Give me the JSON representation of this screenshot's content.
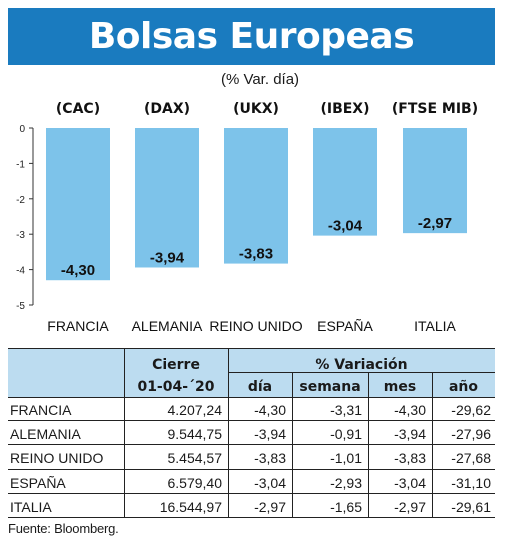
{
  "title": "Bolsas Europeas",
  "subtitle": "(% Var. día)",
  "chart_data": {
    "type": "bar",
    "categories": [
      "FRANCIA",
      "ALEMANIA",
      "REINO UNIDO",
      "ESPAÑA",
      "ITALIA"
    ],
    "indices": [
      "(CAC)",
      "(DAX)",
      "(UKX)",
      "(IBEX)",
      "(FTSE MIB)"
    ],
    "values": [
      -4.3,
      -3.94,
      -3.83,
      -3.04,
      -2.97
    ],
    "value_labels": [
      "-4,30",
      "-3,94",
      "-3,83",
      "-3,04",
      "-2,97"
    ],
    "ylim": [
      -5,
      0
    ],
    "yticks": [
      "0",
      "-1",
      "-2",
      "-3",
      "-4",
      "-5"
    ],
    "bar_color": "#7dc3ea"
  },
  "table": {
    "group_headers": [
      "Cierre",
      "% Variación"
    ],
    "date": "01-04-´20",
    "sub_headers": [
      "día",
      "semana",
      "mes",
      "año"
    ],
    "rows": [
      {
        "name": "FRANCIA",
        "cierre": "4.207,24",
        "dia": "-4,30",
        "semana": "-3,31",
        "mes": "-4,30",
        "ano": "-29,62"
      },
      {
        "name": "ALEMANIA",
        "cierre": "9.544,75",
        "dia": "-3,94",
        "semana": "-0,91",
        "mes": "-3,94",
        "ano": "-27,96"
      },
      {
        "name": "REINO UNIDO",
        "cierre": "5.454,57",
        "dia": "-3,83",
        "semana": "-1,01",
        "mes": "-3,83",
        "ano": "-27,68"
      },
      {
        "name": "ESPAÑA",
        "cierre": "6.579,40",
        "dia": "-3,04",
        "semana": "-2,93",
        "mes": "-3,04",
        "ano": "-31,10"
      },
      {
        "name": "ITALIA",
        "cierre": "16.544,97",
        "dia": "-2,97",
        "semana": "-1,65",
        "mes": "-2,97",
        "ano": "-29,61"
      }
    ],
    "header_color": "#bcdcf0"
  },
  "source": "Fuente: Bloomberg."
}
